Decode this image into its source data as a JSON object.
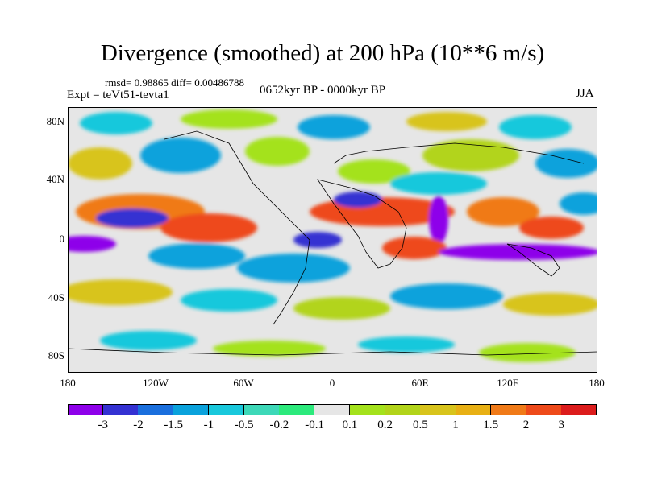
{
  "title": "Divergence (smoothed) at 200 hPa (10**6 m/s)",
  "stats_line": "rmsd= 0.98865 diff= 0.00486788",
  "experiment": "Expt = teVt51-tevta1",
  "period": "0652kyr BP - 0000kyr BP",
  "season": "JJA",
  "latitude_labels": [
    "80N",
    "40N",
    "0",
    "40S",
    "80S"
  ],
  "longitude_labels": [
    "180",
    "120W",
    "60W",
    "0",
    "60E",
    "120E",
    "180"
  ],
  "colorbar": {
    "colors": [
      "#8e00ea",
      "#3431d2",
      "#1a6fdd",
      "#0aa2dc",
      "#19c8dc",
      "#3dd8b8",
      "#2cea7c",
      "#e6e6e6",
      "#a4e21c",
      "#b2d41a",
      "#d8c41c",
      "#e8b014",
      "#f07a18",
      "#ee4a1a",
      "#dc1c1c"
    ],
    "labels": [
      "-3",
      "-2",
      "-1.5",
      "-1",
      "-0.5",
      "-0.2",
      "-0.1",
      "0.1",
      "0.2",
      "0.5",
      "1",
      "1.5",
      "2",
      "3"
    ]
  }
}
